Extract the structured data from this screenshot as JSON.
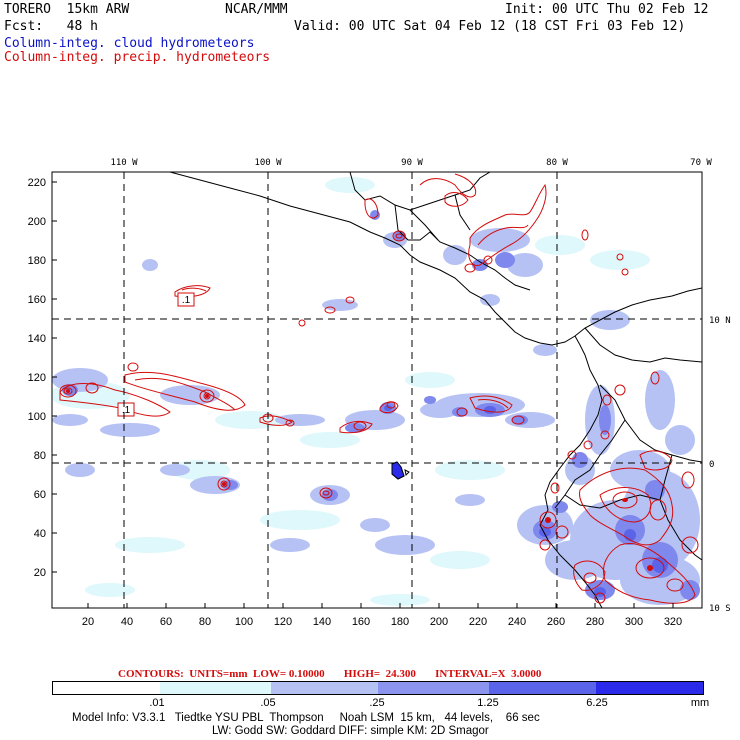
{
  "header": {
    "model": "TORERO  15km ARW",
    "org": "NCAR/MMM",
    "init": "Init: 00 UTC Thu 02 Feb 12",
    "fcst": "Fcst:   48 h",
    "valid": "Valid: 00 UTC Sat 04 Feb 12 (18 CST Fri 03 Feb 12)",
    "field1": "Column-integ. cloud hydrometeors",
    "field2": "Column-integ. precip. hydrometeors"
  },
  "colors": {
    "cloud": "#0a12c8",
    "precip": "#d40b0b"
  },
  "map": {
    "top_labels": [
      "110 W",
      "100 W",
      "90 W",
      "80 W",
      "70 W"
    ],
    "right_labels": [
      "10 N",
      "0",
      "10 S"
    ],
    "y_ticks": [
      "220",
      "200",
      "180",
      "160",
      "140",
      "120",
      "100",
      "80",
      "60",
      "40",
      "20"
    ],
    "x_ticks": [
      "20",
      "40",
      "60",
      "80",
      "100",
      "120",
      "140",
      "160",
      "180",
      "200",
      "220",
      "240",
      "260",
      "280",
      "300",
      "320"
    ],
    "contour_labels": [
      ".1",
      ".1"
    ]
  },
  "legend": {
    "contours_text": "CONTOURS:  UNITS=mm  LOW= 0.10000       HIGH=  24.300       INTERVAL=X  3.0000",
    "ticks": [
      ".01",
      ".05",
      ".25",
      "1.25",
      "6.25",
      "mm"
    ],
    "bins": [
      "#ffffff",
      "#dff8fb",
      "#b6c2f4",
      "#8b94ee",
      "#5b63e8",
      "#2a2bea"
    ]
  },
  "footer": {
    "line1": "Model Info: V3.3.1   Tiedtke YSU PBL  Thompson     Noah LSM  15 km,   44 levels,    66 sec",
    "line2": "LW: Godd SW: Goddard DIFF: simple KM: 2D Smagor"
  }
}
